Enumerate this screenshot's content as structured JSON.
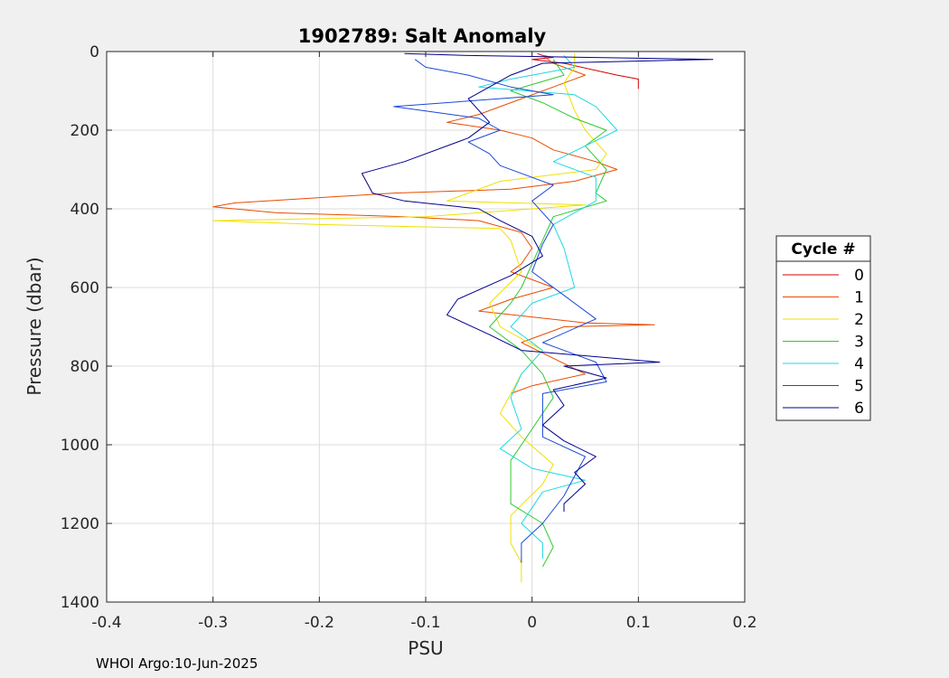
{
  "chart_data": {
    "type": "line",
    "title": "1902789: Salt Anomaly",
    "xlabel": "PSU",
    "ylabel": "Pressure (dbar)",
    "xlim": [
      -0.4,
      0.2
    ],
    "ylim": [
      0,
      1400
    ],
    "y_reversed": true,
    "grid": true,
    "xticks": [
      -0.4,
      -0.3,
      -0.2,
      -0.1,
      0,
      0.1,
      0.2
    ],
    "xtick_labels": [
      "-0.4",
      "-0.3",
      "-0.2",
      "-0.1",
      "0",
      "0.1",
      "0.2"
    ],
    "yticks": [
      0,
      200,
      400,
      600,
      800,
      1000,
      1200,
      1400
    ],
    "ytick_labels": [
      "0",
      "200",
      "400",
      "600",
      "800",
      "1000",
      "1200",
      "1400"
    ],
    "legend_title": "Cycle #",
    "legend_position": "outside-right",
    "series": [
      {
        "name": "0",
        "color": "#d40000",
        "points": [
          [
            0.005,
            5
          ],
          [
            0.01,
            10
          ],
          [
            0.02,
            15
          ],
          [
            0,
            20
          ],
          [
            0.03,
            30
          ],
          [
            0.08,
            60
          ],
          [
            0.1,
            70
          ],
          [
            0.1,
            80
          ],
          [
            0.1,
            95
          ]
        ]
      },
      {
        "name": "1",
        "color": "#e84c00",
        "points": [
          [
            0.01,
            10
          ],
          [
            0.02,
            30
          ],
          [
            0.05,
            60
          ],
          [
            0.02,
            90
          ],
          [
            -0.02,
            130
          ],
          [
            -0.05,
            160
          ],
          [
            -0.08,
            180
          ],
          [
            -0.03,
            200
          ],
          [
            0,
            220
          ],
          [
            0.02,
            250
          ],
          [
            0.06,
            280
          ],
          [
            0.08,
            300
          ],
          [
            0.04,
            330
          ],
          [
            -0.02,
            350
          ],
          [
            -0.13,
            360
          ],
          [
            -0.28,
            385
          ],
          [
            -0.3,
            395
          ],
          [
            -0.24,
            410
          ],
          [
            -0.12,
            420
          ],
          [
            -0.05,
            430
          ],
          [
            -0.01,
            460
          ],
          [
            0,
            500
          ],
          [
            -0.01,
            540
          ],
          [
            -0.02,
            560
          ],
          [
            0.02,
            600
          ],
          [
            -0.02,
            630
          ],
          [
            -0.05,
            660
          ],
          [
            0.05,
            690
          ],
          [
            0.115,
            695
          ],
          [
            0.03,
            700
          ],
          [
            -0.01,
            740
          ],
          [
            0.02,
            780
          ],
          [
            0.05,
            820
          ],
          [
            0,
            850
          ],
          [
            -0.02,
            870
          ]
        ]
      },
      {
        "name": "2",
        "color": "#f0e000",
        "points": [
          [
            0.04,
            5
          ],
          [
            0.04,
            40
          ],
          [
            0.03,
            80
          ],
          [
            0.04,
            150
          ],
          [
            0.05,
            200
          ],
          [
            0.07,
            260
          ],
          [
            0.06,
            300
          ],
          [
            -0.03,
            330
          ],
          [
            -0.08,
            380
          ],
          [
            0.05,
            390
          ],
          [
            -0.1,
            420
          ],
          [
            -0.3,
            430
          ],
          [
            -0.2,
            440
          ],
          [
            -0.03,
            450
          ],
          [
            -0.02,
            480
          ],
          [
            -0.01,
            560
          ],
          [
            -0.04,
            640
          ],
          [
            -0.03,
            700
          ],
          [
            0.01,
            760
          ],
          [
            -0.01,
            820
          ],
          [
            -0.03,
            920
          ],
          [
            -0.01,
            980
          ],
          [
            0.02,
            1050
          ],
          [
            0.01,
            1100
          ],
          [
            -0.02,
            1180
          ],
          [
            -0.02,
            1250
          ],
          [
            -0.01,
            1300
          ],
          [
            -0.01,
            1350
          ]
        ]
      },
      {
        "name": "3",
        "color": "#30c830",
        "points": [
          [
            0.02,
            20
          ],
          [
            0.03,
            60
          ],
          [
            -0.02,
            100
          ],
          [
            0.01,
            130
          ],
          [
            0.04,
            170
          ],
          [
            0.07,
            200
          ],
          [
            0.05,
            240
          ],
          [
            0.07,
            300
          ],
          [
            0.06,
            360
          ],
          [
            0.07,
            380
          ],
          [
            0.02,
            420
          ],
          [
            0.01,
            480
          ],
          [
            0,
            540
          ],
          [
            -0.01,
            600
          ],
          [
            -0.02,
            640
          ],
          [
            -0.04,
            700
          ],
          [
            -0.01,
            760
          ],
          [
            0.01,
            820
          ],
          [
            0.02,
            880
          ],
          [
            0,
            960
          ],
          [
            -0.02,
            1040
          ],
          [
            -0.02,
            1100
          ],
          [
            -0.02,
            1150
          ],
          [
            0.01,
            1200
          ],
          [
            0.02,
            1260
          ],
          [
            0.01,
            1310
          ]
        ]
      },
      {
        "name": "4",
        "color": "#20d8e0",
        "points": [
          [
            0.03,
            10
          ],
          [
            0.04,
            40
          ],
          [
            -0.02,
            70
          ],
          [
            -0.05,
            90
          ],
          [
            0.04,
            110
          ],
          [
            0.06,
            140
          ],
          [
            0.08,
            200
          ],
          [
            0.05,
            240
          ],
          [
            0.02,
            280
          ],
          [
            0.06,
            320
          ],
          [
            0.06,
            380
          ],
          [
            0.02,
            440
          ],
          [
            0.03,
            500
          ],
          [
            0.04,
            600
          ],
          [
            0,
            640
          ],
          [
            -0.02,
            700
          ],
          [
            0.01,
            760
          ],
          [
            -0.01,
            820
          ],
          [
            -0.02,
            880
          ],
          [
            -0.01,
            960
          ],
          [
            -0.03,
            1010
          ],
          [
            0,
            1060
          ],
          [
            0.05,
            1090
          ],
          [
            0.01,
            1120
          ],
          [
            -0.01,
            1200
          ],
          [
            0.01,
            1250
          ],
          [
            0.01,
            1290
          ]
        ]
      },
      {
        "name": "5",
        "color": "#1a48d8",
        "points": [
          [
            -0.11,
            20
          ],
          [
            -0.1,
            40
          ],
          [
            -0.06,
            60
          ],
          [
            -0.02,
            90
          ],
          [
            0.02,
            110
          ],
          [
            -0.13,
            140
          ],
          [
            -0.05,
            170
          ],
          [
            -0.03,
            200
          ],
          [
            -0.06,
            230
          ],
          [
            -0.04,
            260
          ],
          [
            -0.03,
            290
          ],
          [
            0,
            320
          ],
          [
            0.02,
            340
          ],
          [
            0,
            380
          ],
          [
            0.02,
            440
          ],
          [
            0.01,
            490
          ],
          [
            0,
            560
          ],
          [
            0.03,
            620
          ],
          [
            0.06,
            680
          ],
          [
            0.01,
            740
          ],
          [
            0.06,
            790
          ],
          [
            0.07,
            840
          ],
          [
            0.01,
            870
          ],
          [
            0.01,
            920
          ],
          [
            0.01,
            980
          ],
          [
            0.05,
            1030
          ],
          [
            0.04,
            1080
          ],
          [
            0.03,
            1130
          ],
          [
            0.01,
            1200
          ],
          [
            -0.01,
            1250
          ],
          [
            -0.01,
            1300
          ]
        ]
      },
      {
        "name": "6",
        "color": "#00008c",
        "points": [
          [
            -0.12,
            5
          ],
          [
            -0.06,
            10
          ],
          [
            0.17,
            20
          ],
          [
            0.01,
            30
          ],
          [
            -0.02,
            60
          ],
          [
            -0.06,
            120
          ],
          [
            -0.04,
            180
          ],
          [
            -0.06,
            220
          ],
          [
            -0.12,
            280
          ],
          [
            -0.16,
            310
          ],
          [
            -0.15,
            360
          ],
          [
            -0.12,
            380
          ],
          [
            -0.05,
            400
          ],
          [
            -0.03,
            430
          ],
          [
            0,
            470
          ],
          [
            0.01,
            520
          ],
          [
            -0.02,
            570
          ],
          [
            -0.07,
            630
          ],
          [
            -0.08,
            670
          ],
          [
            -0.04,
            720
          ],
          [
            -0.01,
            760
          ],
          [
            0.12,
            790
          ],
          [
            0.03,
            800
          ],
          [
            0.07,
            830
          ],
          [
            0.02,
            860
          ],
          [
            0.03,
            900
          ],
          [
            0.01,
            950
          ],
          [
            0.03,
            990
          ],
          [
            0.06,
            1030
          ],
          [
            0.04,
            1070
          ],
          [
            0.05,
            1100
          ],
          [
            0.03,
            1150
          ],
          [
            0.03,
            1170
          ]
        ]
      }
    ]
  },
  "footer": "WHOI Argo:10-Jun-2025"
}
